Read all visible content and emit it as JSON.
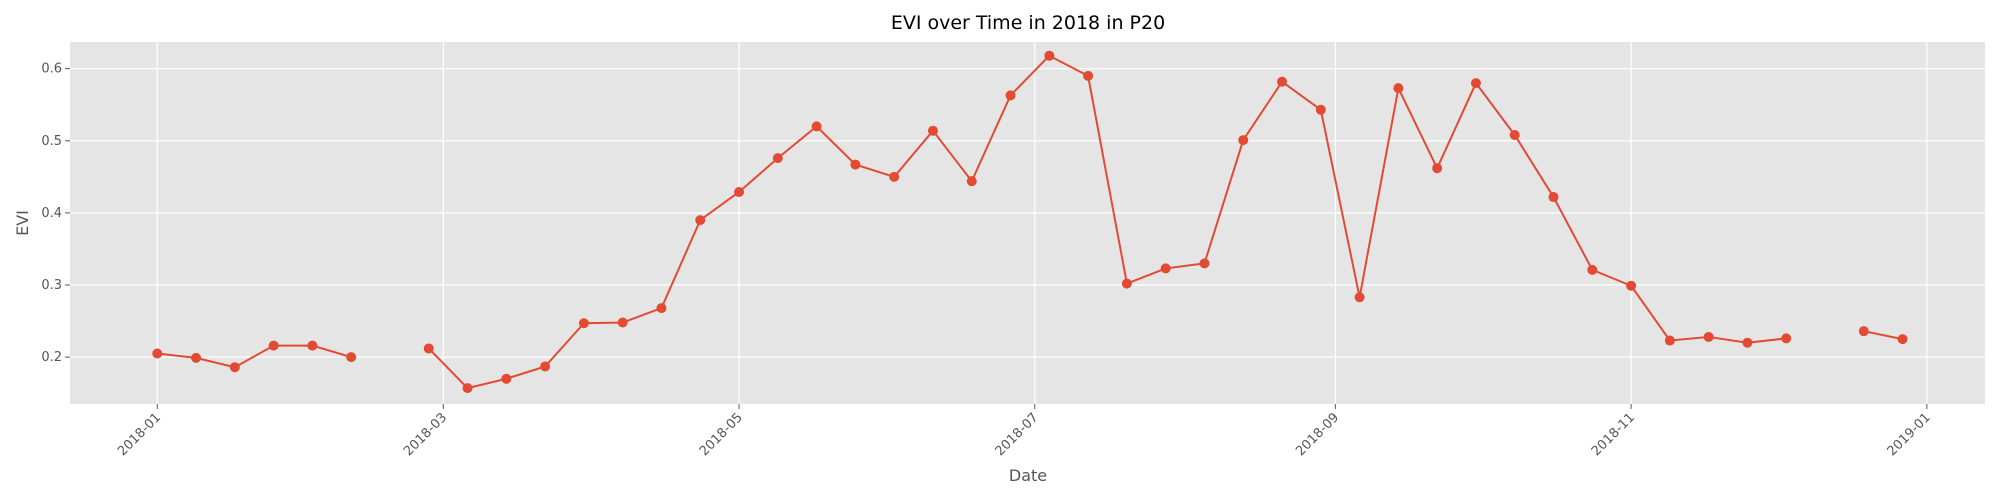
{
  "chart_data": {
    "type": "line",
    "title": "EVI over Time in 2018 in P20",
    "xlabel": "Date",
    "ylabel": "EVI",
    "xlim": [
      "2017-12-14",
      "2019-01-13"
    ],
    "ylim": [
      0.135,
      0.637
    ],
    "grid": true,
    "x_ticks": [
      "2018-01",
      "2018-03",
      "2018-05",
      "2018-07",
      "2018-09",
      "2018-11",
      "2019-01"
    ],
    "y_ticks": [
      "0.2",
      "0.3",
      "0.4",
      "0.5",
      "0.6"
    ],
    "colors": {
      "line": "#E24A33",
      "background": "#E5E5E5",
      "grid": "#FFFFFF"
    },
    "series": [
      {
        "points": [
          [
            "2018-01-01",
            0.205
          ],
          [
            "2018-01-09",
            0.199
          ],
          [
            "2018-01-17",
            0.186
          ],
          [
            "2018-01-25",
            0.216
          ],
          [
            "2018-02-02",
            0.216
          ],
          [
            "2018-02-10",
            0.2
          ],
          null,
          [
            "2018-02-26",
            0.212
          ],
          [
            "2018-03-06",
            0.157
          ],
          [
            "2018-03-14",
            0.17
          ],
          [
            "2018-03-22",
            0.187
          ],
          [
            "2018-03-30",
            0.247
          ],
          [
            "2018-04-07",
            0.248
          ],
          [
            "2018-04-15",
            0.268
          ],
          [
            "2018-04-23",
            0.39
          ],
          [
            "2018-05-01",
            0.429
          ],
          [
            "2018-05-09",
            0.476
          ],
          [
            "2018-05-17",
            0.52
          ],
          [
            "2018-05-25",
            0.467
          ],
          [
            "2018-06-02",
            0.45
          ],
          [
            "2018-06-10",
            0.514
          ],
          [
            "2018-06-18",
            0.444
          ],
          [
            "2018-06-26",
            0.563
          ],
          [
            "2018-07-04",
            0.618
          ],
          [
            "2018-07-12",
            0.59
          ],
          [
            "2018-07-20",
            0.302
          ],
          [
            "2018-07-28",
            0.323
          ],
          [
            "2018-08-05",
            0.33
          ],
          [
            "2018-08-13",
            0.501
          ],
          [
            "2018-08-21",
            0.582
          ],
          [
            "2018-08-29",
            0.543
          ],
          [
            "2018-09-06",
            0.283
          ],
          [
            "2018-09-14",
            0.573
          ],
          [
            "2018-09-22",
            0.462
          ],
          [
            "2018-09-30",
            0.58
          ],
          [
            "2018-10-08",
            0.508
          ],
          [
            "2018-10-16",
            0.422
          ],
          [
            "2018-10-24",
            0.321
          ],
          [
            "2018-11-01",
            0.299
          ],
          [
            "2018-11-09",
            0.223
          ],
          [
            "2018-11-17",
            0.228
          ],
          [
            "2018-11-25",
            0.22
          ],
          [
            "2018-12-03",
            0.226
          ],
          null,
          [
            "2018-12-19",
            0.236
          ],
          [
            "2018-12-27",
            0.225
          ]
        ]
      }
    ]
  }
}
